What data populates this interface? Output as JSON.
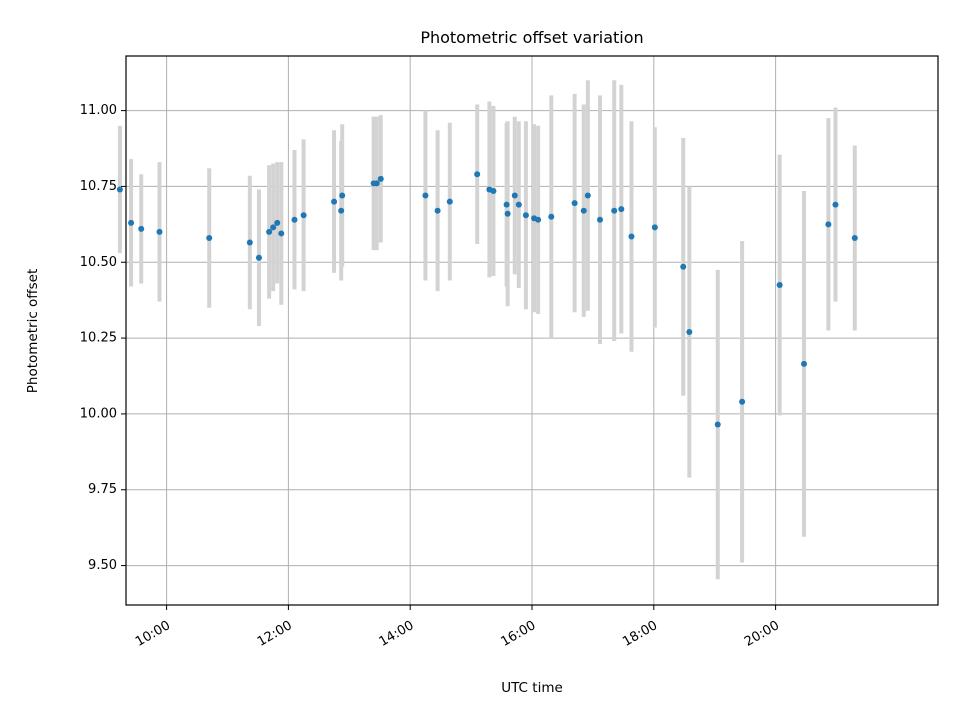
{
  "chart_data": {
    "type": "scatter",
    "title": "Photometric offset variation",
    "xlabel": "UTC time",
    "ylabel": "Photometric offset",
    "xlim": [
      "09:20",
      "22:40"
    ],
    "ylim": [
      9.37,
      11.18
    ],
    "grid": true,
    "x_ticks": [
      "10:00",
      "12:00",
      "14:00",
      "16:00",
      "18:00",
      "20:00"
    ],
    "y_ticks": [
      "9.50",
      "9.75",
      "10.00",
      "10.25",
      "10.50",
      "10.75",
      "11.00"
    ],
    "x_tick_values": [
      "10:00",
      "12:00",
      "14:00",
      "16:00",
      "18:00",
      "20:00"
    ],
    "y_tick_values": [
      9.5,
      9.75,
      10.0,
      10.25,
      10.5,
      10.75,
      11.0
    ],
    "colors": {
      "points": "#1f77b4",
      "errorbars": "#d3d3d3",
      "grid": "#b0b0b0"
    },
    "series": [
      {
        "x": [
          "09:14",
          "09:25",
          "09:35",
          "09:53",
          "10:42",
          "11:22",
          "11:31",
          "11:41",
          "11:45",
          "11:49",
          "11:53",
          "12:06",
          "12:15",
          "12:45",
          "12:52",
          "12:53",
          "13:24",
          "13:27",
          "13:31",
          "14:15",
          "14:27",
          "14:39",
          "15:06",
          "15:18",
          "15:22",
          "15:35",
          "15:36",
          "15:43",
          "15:47",
          "15:54",
          "16:02",
          "16:06",
          "16:19",
          "16:42",
          "16:51",
          "16:55",
          "17:07",
          "17:21",
          "17:28",
          "17:38",
          "18:01",
          "18:29",
          "18:35",
          "19:03",
          "19:27",
          "20:04",
          "20:28",
          "20:52",
          "20:59",
          "21:18"
        ],
        "y": [
          10.74,
          10.63,
          10.61,
          10.6,
          10.58,
          10.565,
          10.515,
          10.6,
          10.615,
          10.63,
          10.595,
          10.64,
          10.655,
          10.7,
          10.67,
          10.72,
          10.76,
          10.76,
          10.775,
          10.72,
          10.67,
          10.7,
          10.79,
          10.74,
          10.735,
          10.69,
          10.66,
          10.72,
          10.69,
          10.655,
          10.645,
          10.64,
          10.65,
          10.695,
          10.67,
          10.72,
          10.64,
          10.67,
          10.675,
          10.585,
          10.615,
          10.485,
          10.27,
          9.965,
          10.04,
          10.425,
          10.165,
          10.625,
          10.69,
          10.58
        ],
        "yerr": [
          0.21,
          0.21,
          0.18,
          0.23,
          0.23,
          0.22,
          0.225,
          0.22,
          0.21,
          0.2,
          0.235,
          0.23,
          0.25,
          0.235,
          0.23,
          0.235,
          0.22,
          0.22,
          0.21,
          0.28,
          0.265,
          0.26,
          0.23,
          0.29,
          0.28,
          0.27,
          0.305,
          0.26,
          0.275,
          0.31,
          0.31,
          0.31,
          0.4,
          0.36,
          0.35,
          0.38,
          0.41,
          0.43,
          0.41,
          0.38,
          0.33,
          0.425,
          0.48,
          0.51,
          0.53,
          0.43,
          0.57,
          0.35,
          0.32,
          0.305
        ]
      }
    ]
  }
}
